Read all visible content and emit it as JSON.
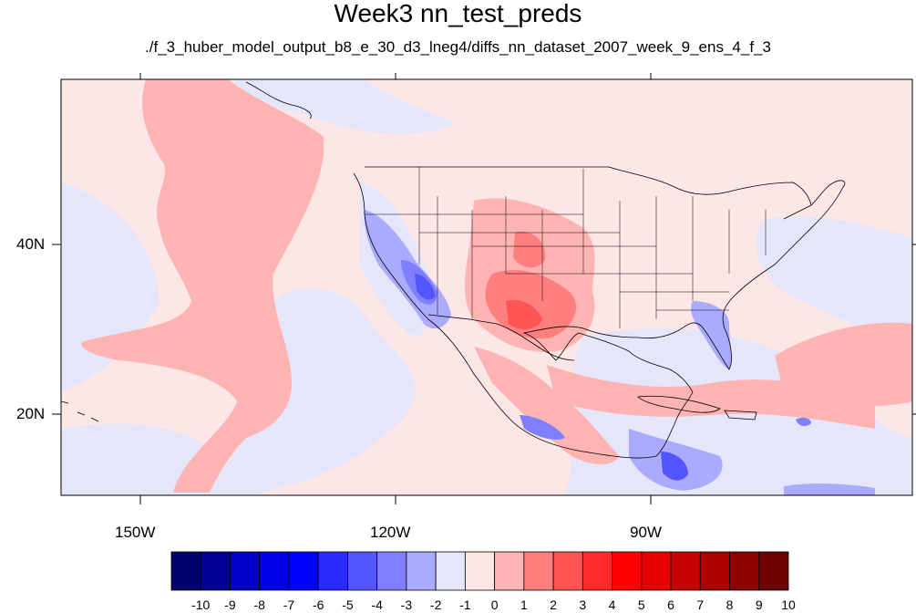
{
  "title": "Week3 nn_test_preds",
  "subtitle": "./f_3_huber_model_output_b8_e_30_d3_lneg4/diffs_nn_dataset_2007_week_9_ens_4_f_3",
  "map": {
    "lon_range": [
      -160,
      -62
    ],
    "lat_range": [
      10,
      58
    ],
    "projection": "cylindrical equidistant",
    "lat_labels": [
      "40N",
      "20N"
    ],
    "lon_labels": [
      "150W",
      "120W",
      "90W"
    ],
    "features": [
      "coastlines",
      "US state borders",
      "Mexico state borders"
    ]
  },
  "colorbar": {
    "labels": [
      "-10",
      "-9",
      "-8",
      "-7",
      "-6",
      "-5",
      "-4",
      "-3",
      "-2",
      "-1",
      "0",
      "1",
      "2",
      "3",
      "4",
      "5",
      "6",
      "7",
      "8",
      "9",
      "10"
    ],
    "colors": [
      "#00006e",
      "#000096",
      "#0000c8",
      "#0000e6",
      "#0000ff",
      "#2b2bff",
      "#5555ff",
      "#7f7fff",
      "#aaaaff",
      "#e6e6fa",
      "#fde6e6",
      "#ffb4b4",
      "#ff7f7f",
      "#ff5555",
      "#ff2b2b",
      "#ff0000",
      "#e60000",
      "#c80000",
      "#aa0000",
      "#8c0000",
      "#6e0000"
    ]
  }
}
